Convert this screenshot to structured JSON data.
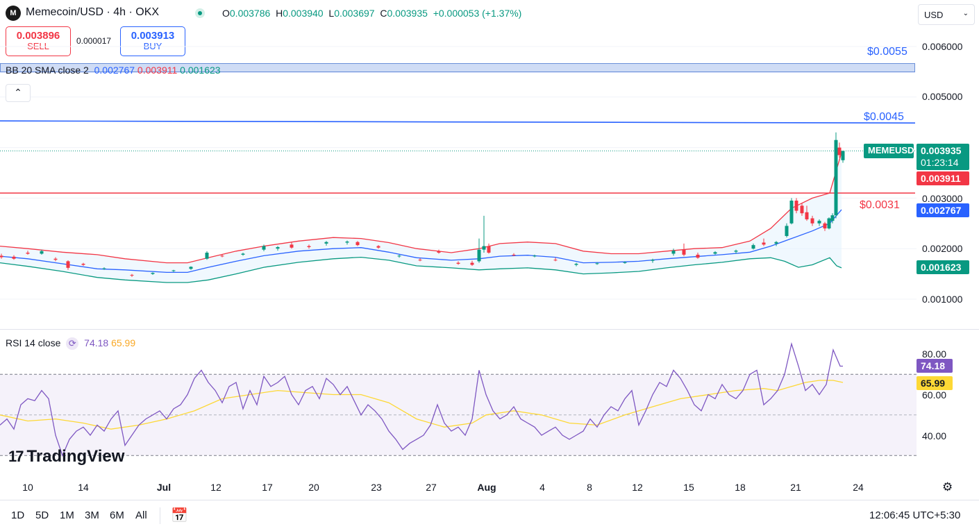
{
  "header": {
    "logo_text": "M",
    "symbol_title": "Memecoin/USD · 4h · OKX",
    "ohlc": {
      "open_label": "O",
      "open": "0.003786",
      "high_label": "H",
      "high": "0.003940",
      "low_label": "L",
      "low": "0.003697",
      "close_label": "C",
      "close": "0.003935",
      "change": "+0.000053 (+1.37%)"
    }
  },
  "trade": {
    "sell_price": "0.003896",
    "sell_label": "SELL",
    "spread": "0.000017",
    "buy_price": "0.003913",
    "buy_label": "BUY"
  },
  "currency_select": "USD",
  "bb_legend": {
    "name": "BB 20 SMA close 2",
    "basis": "0.002767",
    "upper": "0.003911",
    "lower": "0.001623"
  },
  "price_axis": [
    "0.006000",
    "0.005000",
    "0.003000",
    "0.002000",
    "0.001000"
  ],
  "horizontal_lines": [
    {
      "label": "$0.0055",
      "price": 0.0055,
      "color": "#2962ff"
    },
    {
      "label": "$0.0045",
      "price": 0.0045,
      "color": "#2962ff"
    },
    {
      "label": "$0.0031",
      "price": 0.0031,
      "color": "#f23645"
    }
  ],
  "price_tags": {
    "symbol_tag": "MEMEUSD",
    "last_price": "0.003935",
    "countdown": "01:23:14",
    "bb_upper": "0.003911",
    "bb_basis": "0.002767",
    "bb_lower": "0.001623"
  },
  "rsi": {
    "name": "RSI 14 close",
    "value": "74.18",
    "ma_value": "65.99",
    "axis": [
      "80.00",
      "60.00",
      "40.00"
    ],
    "upper_band": 70,
    "lower_band": 30
  },
  "time_axis": [
    "10",
    "14",
    "Jul",
    "12",
    "17",
    "20",
    "23",
    "27",
    "Aug",
    "4",
    "8",
    "12",
    "15",
    "18",
    "21",
    "24"
  ],
  "range_buttons": [
    "1D",
    "5D",
    "1M",
    "3M",
    "6M",
    "All"
  ],
  "clock": "12:06:45 UTC+5:30",
  "branding": "TradingView",
  "colors": {
    "up": "#089981",
    "down": "#f23645",
    "bb_basis": "#2962ff",
    "bb_upper": "#f23645",
    "bb_lower": "#089981",
    "rsi_line": "#7e57c2",
    "rsi_ma": "#fdd835"
  },
  "chart_data": {
    "type": "candlestick",
    "timeframe": "4h",
    "price_range": [
      0.0005,
      0.0065
    ],
    "bb_upper_path": [
      [
        0,
        0.00205
      ],
      [
        40,
        0.002
      ],
      [
        90,
        0.00193
      ],
      [
        140,
        0.00188
      ],
      [
        180,
        0.0018
      ],
      [
        240,
        0.00172
      ],
      [
        270,
        0.00172
      ],
      [
        300,
        0.00182
      ],
      [
        340,
        0.00195
      ],
      [
        380,
        0.00205
      ],
      [
        430,
        0.00215
      ],
      [
        480,
        0.00222
      ],
      [
        520,
        0.0022
      ],
      [
        560,
        0.00212
      ],
      [
        600,
        0.002
      ],
      [
        650,
        0.00192
      ],
      [
        690,
        0.002
      ],
      [
        720,
        0.0021
      ],
      [
        760,
        0.00213
      ],
      [
        800,
        0.0021
      ],
      [
        840,
        0.00195
      ],
      [
        880,
        0.0019
      ],
      [
        920,
        0.0019
      ],
      [
        960,
        0.00195
      ],
      [
        1000,
        0.002
      ],
      [
        1040,
        0.00202
      ],
      [
        1080,
        0.00215
      ],
      [
        1110,
        0.0024
      ],
      [
        1140,
        0.0028
      ],
      [
        1170,
        0.003
      ],
      [
        1195,
        0.0031
      ],
      [
        1212,
        0.0039
      ]
    ],
    "bb_basis_path": [
      [
        0,
        0.00185
      ],
      [
        40,
        0.0018
      ],
      [
        90,
        0.0017
      ],
      [
        140,
        0.0016
      ],
      [
        180,
        0.00158
      ],
      [
        240,
        0.00153
      ],
      [
        270,
        0.00153
      ],
      [
        300,
        0.00163
      ],
      [
        340,
        0.00175
      ],
      [
        380,
        0.00186
      ],
      [
        430,
        0.00195
      ],
      [
        480,
        0.002
      ],
      [
        520,
        0.00202
      ],
      [
        560,
        0.00193
      ],
      [
        600,
        0.00182
      ],
      [
        650,
        0.00177
      ],
      [
        690,
        0.0018
      ],
      [
        720,
        0.00185
      ],
      [
        760,
        0.00187
      ],
      [
        800,
        0.00183
      ],
      [
        840,
        0.00172
      ],
      [
        880,
        0.00173
      ],
      [
        920,
        0.00175
      ],
      [
        960,
        0.0018
      ],
      [
        1000,
        0.00184
      ],
      [
        1040,
        0.00188
      ],
      [
        1080,
        0.00193
      ],
      [
        1110,
        0.00205
      ],
      [
        1140,
        0.0022
      ],
      [
        1170,
        0.00235
      ],
      [
        1195,
        0.0025
      ],
      [
        1212,
        0.00277
      ]
    ],
    "bb_lower_path": [
      [
        0,
        0.00172
      ],
      [
        40,
        0.00165
      ],
      [
        90,
        0.00155
      ],
      [
        140,
        0.00143
      ],
      [
        180,
        0.00138
      ],
      [
        240,
        0.00133
      ],
      [
        270,
        0.00133
      ],
      [
        300,
        0.00138
      ],
      [
        340,
        0.0015
      ],
      [
        380,
        0.00163
      ],
      [
        430,
        0.00173
      ],
      [
        480,
        0.0018
      ],
      [
        520,
        0.00183
      ],
      [
        560,
        0.00177
      ],
      [
        600,
        0.00166
      ],
      [
        650,
        0.00162
      ],
      [
        690,
        0.00158
      ],
      [
        720,
        0.0016
      ],
      [
        760,
        0.00162
      ],
      [
        800,
        0.00158
      ],
      [
        840,
        0.0015
      ],
      [
        880,
        0.00152
      ],
      [
        920,
        0.00155
      ],
      [
        960,
        0.00162
      ],
      [
        1000,
        0.00168
      ],
      [
        1040,
        0.00173
      ],
      [
        1080,
        0.0018
      ],
      [
        1110,
        0.00182
      ],
      [
        1130,
        0.00175
      ],
      [
        1150,
        0.00163
      ],
      [
        1170,
        0.00168
      ],
      [
        1195,
        0.00182
      ],
      [
        1205,
        0.00166
      ],
      [
        1212,
        0.00162
      ]
    ],
    "candles": [
      [
        2,
        0.00186,
        0.0019,
        0.0018,
        0.00183
      ],
      [
        20,
        0.00184,
        0.00187,
        0.00178,
        0.0018
      ],
      [
        40,
        0.00192,
        0.00196,
        0.00188,
        0.0019
      ],
      [
        60,
        0.0019,
        0.00198,
        0.00188,
        0.00195
      ],
      [
        80,
        0.0018,
        0.00183,
        0.00175,
        0.00178
      ],
      [
        98,
        0.00175,
        0.00177,
        0.00158,
        0.00162
      ],
      [
        120,
        0.0017,
        0.00172,
        0.00166,
        0.00168
      ],
      [
        150,
        0.0016,
        0.00163,
        0.00158,
        0.00161
      ],
      [
        190,
        0.00148,
        0.0015,
        0.00144,
        0.00147
      ],
      [
        220,
        0.0015,
        0.00153,
        0.00148,
        0.00152
      ],
      [
        250,
        0.00156,
        0.00158,
        0.00154,
        0.00157
      ],
      [
        275,
        0.0016,
        0.00165,
        0.00158,
        0.00164
      ],
      [
        298,
        0.0018,
        0.00195,
        0.00178,
        0.00192
      ],
      [
        320,
        0.00186,
        0.00189,
        0.00183,
        0.00185
      ],
      [
        350,
        0.00188,
        0.00192,
        0.00186,
        0.0019
      ],
      [
        380,
        0.00198,
        0.00208,
        0.00195,
        0.00205
      ],
      [
        400,
        0.002,
        0.00205,
        0.00196,
        0.00203
      ],
      [
        420,
        0.00208,
        0.00212,
        0.002,
        0.00202
      ],
      [
        445,
        0.00205,
        0.00208,
        0.002,
        0.00203
      ],
      [
        470,
        0.0021,
        0.00215,
        0.00206,
        0.00213
      ],
      [
        500,
        0.00212,
        0.00216,
        0.00208,
        0.00214
      ],
      [
        515,
        0.00213,
        0.00215,
        0.00205,
        0.00207
      ],
      [
        545,
        0.00205,
        0.00207,
        0.002,
        0.00202
      ],
      [
        575,
        0.00185,
        0.00188,
        0.00182,
        0.00186
      ],
      [
        605,
        0.00178,
        0.00181,
        0.00175,
        0.00177
      ],
      [
        632,
        0.00195,
        0.00198,
        0.0019,
        0.00192
      ],
      [
        660,
        0.00172,
        0.00175,
        0.00168,
        0.0017
      ],
      [
        680,
        0.00172,
        0.00176,
        0.00166,
        0.00168
      ],
      [
        690,
        0.00175,
        0.0022,
        0.00172,
        0.00198
      ],
      [
        697,
        0.00198,
        0.00265,
        0.00192,
        0.00205
      ],
      [
        704,
        0.00205,
        0.0021,
        0.0019,
        0.00192
      ],
      [
        740,
        0.00188,
        0.00191,
        0.00185,
        0.00187
      ],
      [
        770,
        0.00185,
        0.00188,
        0.00183,
        0.00186
      ],
      [
        800,
        0.00178,
        0.00182,
        0.00175,
        0.00177
      ],
      [
        830,
        0.00168,
        0.00172,
        0.00165,
        0.0017
      ],
      [
        860,
        0.0017,
        0.00173,
        0.00168,
        0.00171
      ],
      [
        900,
        0.00172,
        0.00175,
        0.0017,
        0.00173
      ],
      [
        940,
        0.00176,
        0.0018,
        0.00172,
        0.00178
      ],
      [
        970,
        0.0019,
        0.002,
        0.00186,
        0.00196
      ],
      [
        985,
        0.00198,
        0.0021,
        0.00185,
        0.00188
      ],
      [
        1005,
        0.00188,
        0.00192,
        0.0018,
        0.00182
      ],
      [
        1030,
        0.0019,
        0.00195,
        0.00188,
        0.00193
      ],
      [
        1060,
        0.00194,
        0.00198,
        0.0019,
        0.00196
      ],
      [
        1085,
        0.002,
        0.0021,
        0.00198,
        0.00207
      ],
      [
        1100,
        0.00212,
        0.0022,
        0.00205,
        0.00208
      ],
      [
        1118,
        0.0021,
        0.00215,
        0.00205,
        0.00213
      ],
      [
        1133,
        0.00225,
        0.0025,
        0.00222,
        0.00245
      ],
      [
        1140,
        0.0025,
        0.003,
        0.00248,
        0.00295
      ],
      [
        1147,
        0.00295,
        0.003,
        0.0027,
        0.00275
      ],
      [
        1155,
        0.00285,
        0.0029,
        0.00265,
        0.0027
      ],
      [
        1162,
        0.00272,
        0.00285,
        0.00255,
        0.00258
      ],
      [
        1170,
        0.0026,
        0.00265,
        0.00245,
        0.0025
      ],
      [
        1180,
        0.0025,
        0.00258,
        0.00245,
        0.00255
      ],
      [
        1188,
        0.0025,
        0.00253,
        0.00235,
        0.0024
      ],
      [
        1194,
        0.0024,
        0.00262,
        0.00238,
        0.0026
      ],
      [
        1199,
        0.00255,
        0.0027,
        0.0025,
        0.00266
      ],
      [
        1204,
        0.00266,
        0.0043,
        0.0026,
        0.00415
      ],
      [
        1209,
        0.004,
        0.0041,
        0.0038,
        0.00385
      ],
      [
        1214,
        0.00375,
        0.00394,
        0.0037,
        0.00393
      ]
    ],
    "rsi_range": [
      25,
      90
    ],
    "rsi_line": [
      [
        0,
        45
      ],
      [
        10,
        48
      ],
      [
        20,
        43
      ],
      [
        30,
        55
      ],
      [
        40,
        58
      ],
      [
        50,
        57
      ],
      [
        60,
        62
      ],
      [
        70,
        58
      ],
      [
        80,
        40
      ],
      [
        90,
        30
      ],
      [
        100,
        38
      ],
      [
        110,
        42
      ],
      [
        120,
        44
      ],
      [
        130,
        40
      ],
      [
        140,
        45
      ],
      [
        150,
        42
      ],
      [
        160,
        48
      ],
      [
        170,
        52
      ],
      [
        180,
        35
      ],
      [
        190,
        40
      ],
      [
        200,
        45
      ],
      [
        210,
        48
      ],
      [
        220,
        50
      ],
      [
        230,
        52
      ],
      [
        240,
        48
      ],
      [
        250,
        53
      ],
      [
        260,
        55
      ],
      [
        270,
        60
      ],
      [
        280,
        68
      ],
      [
        290,
        72
      ],
      [
        300,
        66
      ],
      [
        310,
        62
      ],
      [
        320,
        56
      ],
      [
        330,
        64
      ],
      [
        340,
        66
      ],
      [
        350,
        53
      ],
      [
        360,
        62
      ],
      [
        370,
        55
      ],
      [
        380,
        69
      ],
      [
        390,
        64
      ],
      [
        400,
        66
      ],
      [
        410,
        69
      ],
      [
        420,
        60
      ],
      [
        430,
        55
      ],
      [
        440,
        62
      ],
      [
        450,
        64
      ],
      [
        460,
        58
      ],
      [
        470,
        68
      ],
      [
        480,
        65
      ],
      [
        490,
        60
      ],
      [
        500,
        64
      ],
      [
        510,
        57
      ],
      [
        520,
        50
      ],
      [
        530,
        55
      ],
      [
        540,
        52
      ],
      [
        550,
        48
      ],
      [
        560,
        42
      ],
      [
        570,
        38
      ],
      [
        580,
        33
      ],
      [
        590,
        36
      ],
      [
        600,
        38
      ],
      [
        610,
        40
      ],
      [
        620,
        45
      ],
      [
        630,
        55
      ],
      [
        640,
        46
      ],
      [
        650,
        42
      ],
      [
        660,
        44
      ],
      [
        670,
        40
      ],
      [
        680,
        48
      ],
      [
        690,
        72
      ],
      [
        700,
        60
      ],
      [
        710,
        52
      ],
      [
        720,
        48
      ],
      [
        730,
        50
      ],
      [
        740,
        54
      ],
      [
        750,
        48
      ],
      [
        760,
        46
      ],
      [
        770,
        44
      ],
      [
        780,
        40
      ],
      [
        790,
        42
      ],
      [
        800,
        44
      ],
      [
        810,
        40
      ],
      [
        820,
        38
      ],
      [
        830,
        40
      ],
      [
        840,
        42
      ],
      [
        850,
        48
      ],
      [
        860,
        44
      ],
      [
        870,
        50
      ],
      [
        880,
        54
      ],
      [
        890,
        52
      ],
      [
        900,
        58
      ],
      [
        910,
        62
      ],
      [
        920,
        45
      ],
      [
        930,
        52
      ],
      [
        940,
        60
      ],
      [
        950,
        66
      ],
      [
        960,
        64
      ],
      [
        970,
        72
      ],
      [
        980,
        68
      ],
      [
        990,
        62
      ],
      [
        1000,
        55
      ],
      [
        1010,
        52
      ],
      [
        1020,
        60
      ],
      [
        1030,
        58
      ],
      [
        1040,
        65
      ],
      [
        1050,
        60
      ],
      [
        1060,
        58
      ],
      [
        1070,
        62
      ],
      [
        1080,
        70
      ],
      [
        1090,
        72
      ],
      [
        1100,
        55
      ],
      [
        1110,
        58
      ],
      [
        1120,
        62
      ],
      [
        1130,
        70
      ],
      [
        1140,
        85
      ],
      [
        1150,
        74
      ],
      [
        1160,
        62
      ],
      [
        1170,
        65
      ],
      [
        1180,
        60
      ],
      [
        1190,
        65
      ],
      [
        1200,
        82
      ],
      [
        1210,
        74
      ],
      [
        1214,
        74
      ]
    ],
    "rsi_ma": [
      [
        0,
        50
      ],
      [
        40,
        47
      ],
      [
        80,
        48
      ],
      [
        120,
        46
      ],
      [
        160,
        43
      ],
      [
        200,
        45
      ],
      [
        240,
        48
      ],
      [
        280,
        52
      ],
      [
        320,
        58
      ],
      [
        360,
        60
      ],
      [
        400,
        62
      ],
      [
        440,
        61
      ],
      [
        480,
        60
      ],
      [
        520,
        60
      ],
      [
        560,
        56
      ],
      [
        600,
        48
      ],
      [
        640,
        44
      ],
      [
        680,
        46
      ],
      [
        700,
        50
      ],
      [
        740,
        52
      ],
      [
        780,
        50
      ],
      [
        820,
        46
      ],
      [
        860,
        45
      ],
      [
        900,
        50
      ],
      [
        940,
        54
      ],
      [
        980,
        58
      ],
      [
        1020,
        60
      ],
      [
        1060,
        62
      ],
      [
        1100,
        63
      ],
      [
        1120,
        62
      ],
      [
        1140,
        64
      ],
      [
        1160,
        66
      ],
      [
        1180,
        67
      ],
      [
        1200,
        67
      ],
      [
        1214,
        66
      ]
    ]
  }
}
